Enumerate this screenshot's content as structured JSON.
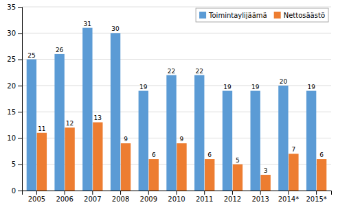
{
  "chart_data": {
    "type": "bar",
    "categories": [
      "2005",
      "2006",
      "2007",
      "2008",
      "2009",
      "2010",
      "2011",
      "2012",
      "2013",
      "2014*",
      "2015*"
    ],
    "series": [
      {
        "name": "Toimintaylijäämä",
        "color": "#5B9BD5",
        "values": [
          25,
          26,
          31,
          30,
          19,
          22,
          22,
          19,
          19,
          20,
          19
        ]
      },
      {
        "name": "Nettosäästö",
        "color": "#ED7D31",
        "values": [
          11,
          12,
          13,
          9,
          6,
          9,
          6,
          5,
          3,
          7,
          6
        ]
      }
    ],
    "ylim": [
      0,
      35
    ],
    "yticks": [
      0,
      5,
      10,
      15,
      20,
      25,
      30,
      35
    ],
    "grid": true,
    "legend": "upper right",
    "data_labels": true
  }
}
